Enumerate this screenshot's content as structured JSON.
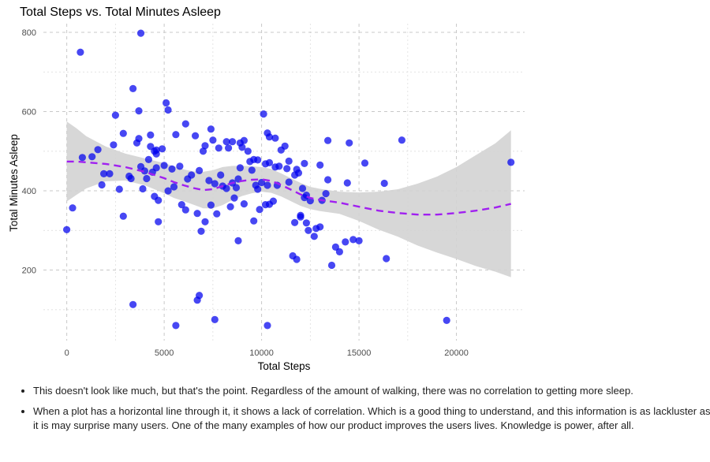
{
  "chart_data": {
    "type": "scatter",
    "title": "Total Steps vs. Total Minutes Asleep",
    "xlabel": "Total Steps",
    "ylabel": "Total Minutes Asleep",
    "xlim": [
      -1200,
      23500
    ],
    "ylim": [
      22,
      822
    ],
    "x_ticks": [
      0,
      5000,
      10000,
      15000,
      20000
    ],
    "y_ticks": [
      200,
      400,
      600,
      800
    ],
    "grid": true,
    "colors": {
      "points": "#0000ee",
      "trend": "#a020f0",
      "band": "#d3d3d3",
      "grid": "#c8c8c8"
    },
    "points": [
      [
        0,
        302
      ],
      [
        300,
        357
      ],
      [
        700,
        750
      ],
      [
        800,
        484
      ],
      [
        1300,
        486
      ],
      [
        1600,
        504
      ],
      [
        1800,
        415
      ],
      [
        1900,
        443
      ],
      [
        2200,
        443
      ],
      [
        2400,
        516
      ],
      [
        2500,
        591
      ],
      [
        2700,
        404
      ],
      [
        2900,
        545
      ],
      [
        2900,
        336
      ],
      [
        3200,
        437
      ],
      [
        3300,
        431
      ],
      [
        3400,
        658
      ],
      [
        3400,
        113
      ],
      [
        3600,
        521
      ],
      [
        3700,
        532
      ],
      [
        3700,
        602
      ],
      [
        3800,
        798
      ],
      [
        3800,
        461
      ],
      [
        3900,
        405
      ],
      [
        4000,
        450
      ],
      [
        4100,
        431
      ],
      [
        4200,
        479
      ],
      [
        4300,
        541
      ],
      [
        4300,
        512
      ],
      [
        4400,
        447
      ],
      [
        4500,
        500
      ],
      [
        4500,
        386
      ],
      [
        4600,
        503
      ],
      [
        4600,
        458
      ],
      [
        4600,
        493
      ],
      [
        4700,
        376
      ],
      [
        4700,
        322
      ],
      [
        4900,
        506
      ],
      [
        5000,
        464
      ],
      [
        5100,
        622
      ],
      [
        5200,
        604
      ],
      [
        5200,
        400
      ],
      [
        5400,
        455
      ],
      [
        5500,
        410
      ],
      [
        5600,
        542
      ],
      [
        5600,
        60
      ],
      [
        5800,
        462
      ],
      [
        5900,
        365
      ],
      [
        6100,
        569
      ],
      [
        6100,
        352
      ],
      [
        6200,
        430
      ],
      [
        6400,
        440
      ],
      [
        6600,
        539
      ],
      [
        6700,
        124
      ],
      [
        6700,
        343
      ],
      [
        6800,
        451
      ],
      [
        6800,
        136
      ],
      [
        6900,
        298
      ],
      [
        7000,
        500
      ],
      [
        7100,
        514
      ],
      [
        7100,
        322
      ],
      [
        7300,
        426
      ],
      [
        7400,
        556
      ],
      [
        7400,
        364
      ],
      [
        7500,
        528
      ],
      [
        7600,
        418
      ],
      [
        7600,
        75
      ],
      [
        7700,
        342
      ],
      [
        7800,
        508
      ],
      [
        7900,
        440
      ],
      [
        8000,
        412
      ],
      [
        8200,
        524
      ],
      [
        8200,
        406
      ],
      [
        8300,
        508
      ],
      [
        8400,
        360
      ],
      [
        8500,
        524
      ],
      [
        8500,
        420
      ],
      [
        8600,
        382
      ],
      [
        8700,
        408
      ],
      [
        8800,
        430
      ],
      [
        8800,
        274
      ],
      [
        8900,
        521
      ],
      [
        8900,
        458
      ],
      [
        9000,
        510
      ],
      [
        9100,
        527
      ],
      [
        9100,
        367
      ],
      [
        9300,
        500
      ],
      [
        9400,
        474
      ],
      [
        9500,
        452
      ],
      [
        9600,
        324
      ],
      [
        9600,
        479
      ],
      [
        9700,
        414
      ],
      [
        9800,
        404
      ],
      [
        9800,
        478
      ],
      [
        9900,
        353
      ],
      [
        10000,
        421
      ],
      [
        10100,
        594
      ],
      [
        10200,
        468
      ],
      [
        10200,
        365
      ],
      [
        10300,
        546
      ],
      [
        10300,
        414
      ],
      [
        10300,
        60
      ],
      [
        10400,
        366
      ],
      [
        10400,
        471
      ],
      [
        10400,
        536
      ],
      [
        10600,
        374
      ],
      [
        10700,
        460
      ],
      [
        10700,
        533
      ],
      [
        10800,
        414
      ],
      [
        10900,
        462
      ],
      [
        11000,
        503
      ],
      [
        11200,
        513
      ],
      [
        11300,
        456
      ],
      [
        11400,
        475
      ],
      [
        11400,
        422
      ],
      [
        11600,
        236
      ],
      [
        11700,
        320
      ],
      [
        11700,
        440
      ],
      [
        11800,
        227
      ],
      [
        11800,
        454
      ],
      [
        11900,
        445
      ],
      [
        12000,
        338
      ],
      [
        12000,
        334
      ],
      [
        12100,
        406
      ],
      [
        12200,
        469
      ],
      [
        12200,
        383
      ],
      [
        12300,
        319
      ],
      [
        12300,
        389
      ],
      [
        12400,
        300
      ],
      [
        12500,
        375
      ],
      [
        12700,
        285
      ],
      [
        12800,
        305
      ],
      [
        13000,
        309
      ],
      [
        13000,
        465
      ],
      [
        13100,
        376
      ],
      [
        13300,
        393
      ],
      [
        13400,
        428
      ],
      [
        13400,
        527
      ],
      [
        13600,
        212
      ],
      [
        13800,
        258
      ],
      [
        14000,
        246
      ],
      [
        14300,
        271
      ],
      [
        14400,
        420
      ],
      [
        14500,
        521
      ],
      [
        14700,
        277
      ],
      [
        15000,
        274
      ],
      [
        15300,
        470
      ],
      [
        16300,
        419
      ],
      [
        16400,
        229
      ],
      [
        17200,
        528
      ],
      [
        19500,
        73
      ],
      [
        22800,
        472
      ]
    ],
    "trend": [
      [
        0,
        474
      ],
      [
        500,
        474
      ],
      [
        1000,
        472
      ],
      [
        2000,
        468
      ],
      [
        3000,
        460
      ],
      [
        4000,
        448
      ],
      [
        5000,
        432
      ],
      [
        5500,
        422
      ],
      [
        6000,
        414
      ],
      [
        6500,
        407
      ],
      [
        7000,
        402
      ],
      [
        7500,
        404
      ],
      [
        8000,
        412
      ],
      [
        8500,
        420
      ],
      [
        9000,
        425
      ],
      [
        9500,
        428
      ],
      [
        10000,
        429
      ],
      [
        10500,
        425
      ],
      [
        11000,
        415
      ],
      [
        11500,
        403
      ],
      [
        12000,
        391
      ],
      [
        12500,
        382
      ],
      [
        13000,
        377
      ],
      [
        14000,
        370
      ],
      [
        15000,
        360
      ],
      [
        16000,
        350
      ],
      [
        17000,
        344
      ],
      [
        18000,
        340
      ],
      [
        19000,
        340
      ],
      [
        20000,
        344
      ],
      [
        21000,
        350
      ],
      [
        22000,
        358
      ],
      [
        22800,
        367
      ]
    ],
    "band_upper": [
      [
        0,
        575
      ],
      [
        500,
        558
      ],
      [
        1000,
        538
      ],
      [
        2000,
        512
      ],
      [
        3000,
        494
      ],
      [
        4000,
        482
      ],
      [
        5000,
        470
      ],
      [
        5500,
        462
      ],
      [
        6000,
        454
      ],
      [
        6500,
        449
      ],
      [
        7000,
        448
      ],
      [
        7500,
        452
      ],
      [
        8000,
        460
      ],
      [
        8500,
        463
      ],
      [
        9000,
        463
      ],
      [
        9500,
        462
      ],
      [
        10000,
        460
      ],
      [
        10500,
        455
      ],
      [
        11000,
        444
      ],
      [
        11500,
        432
      ],
      [
        12000,
        420
      ],
      [
        12500,
        410
      ],
      [
        13000,
        405
      ],
      [
        14000,
        398
      ],
      [
        15000,
        396
      ],
      [
        16000,
        398
      ],
      [
        17000,
        404
      ],
      [
        18000,
        418
      ],
      [
        19000,
        436
      ],
      [
        20000,
        460
      ],
      [
        21000,
        490
      ],
      [
        22000,
        520
      ],
      [
        22800,
        553
      ]
    ],
    "band_lower": [
      [
        0,
        373
      ],
      [
        500,
        390
      ],
      [
        1000,
        406
      ],
      [
        2000,
        424
      ],
      [
        3000,
        426
      ],
      [
        4000,
        414
      ],
      [
        5000,
        394
      ],
      [
        5500,
        382
      ],
      [
        6000,
        374
      ],
      [
        6500,
        365
      ],
      [
        7000,
        356
      ],
      [
        7500,
        356
      ],
      [
        8000,
        364
      ],
      [
        8500,
        377
      ],
      [
        9000,
        387
      ],
      [
        9500,
        394
      ],
      [
        10000,
        398
      ],
      [
        10500,
        395
      ],
      [
        11000,
        386
      ],
      [
        11500,
        374
      ],
      [
        12000,
        362
      ],
      [
        12500,
        354
      ],
      [
        13000,
        349
      ],
      [
        14000,
        342
      ],
      [
        15000,
        324
      ],
      [
        16000,
        302
      ],
      [
        17000,
        284
      ],
      [
        18000,
        262
      ],
      [
        19000,
        244
      ],
      [
        20000,
        228
      ],
      [
        21000,
        210
      ],
      [
        22000,
        196
      ],
      [
        22800,
        182
      ]
    ]
  },
  "notes": [
    "This doesn't look like much, but that's the point. Regardless of the amount of walking, there was no correlation to getting more sleep.",
    "When a plot has a horizontal line through it, it shows a lack of correlation. Which is a good thing to understand, and this information is as lackluster as it is may surprise many users. One of the many examples of how our product improves the users lives. Knowledge is power, after all."
  ]
}
